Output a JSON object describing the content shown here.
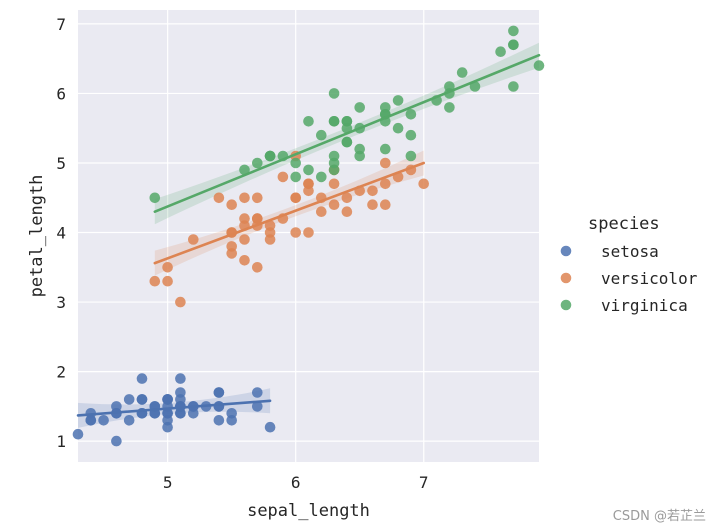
{
  "chart_data": {
    "type": "scatter",
    "title": "",
    "xlabel": "sepal_length",
    "ylabel": "petal_length",
    "xlim": [
      4.3,
      7.9
    ],
    "ylim": [
      0.7,
      7.2
    ],
    "xticks": [
      5,
      6,
      7
    ],
    "yticks": [
      1,
      2,
      3,
      4,
      5,
      6,
      7
    ],
    "grid": true,
    "legend": {
      "title": "species",
      "placement": "right",
      "entries": [
        "setosa",
        "versicolor",
        "virginica"
      ]
    },
    "series": [
      {
        "name": "setosa",
        "color": "#4c72b0",
        "points": [
          [
            5.1,
            1.4
          ],
          [
            4.9,
            1.4
          ],
          [
            4.7,
            1.3
          ],
          [
            4.6,
            1.5
          ],
          [
            5.0,
            1.4
          ],
          [
            5.4,
            1.7
          ],
          [
            4.6,
            1.4
          ],
          [
            5.0,
            1.5
          ],
          [
            4.4,
            1.4
          ],
          [
            4.9,
            1.5
          ],
          [
            5.4,
            1.5
          ],
          [
            4.8,
            1.6
          ],
          [
            4.8,
            1.4
          ],
          [
            4.3,
            1.1
          ],
          [
            5.8,
            1.2
          ],
          [
            5.7,
            1.5
          ],
          [
            5.4,
            1.3
          ],
          [
            5.1,
            1.4
          ],
          [
            5.7,
            1.7
          ],
          [
            5.1,
            1.5
          ],
          [
            5.4,
            1.7
          ],
          [
            5.1,
            1.5
          ],
          [
            4.6,
            1.0
          ],
          [
            5.1,
            1.7
          ],
          [
            4.8,
            1.9
          ],
          [
            5.0,
            1.6
          ],
          [
            5.0,
            1.6
          ],
          [
            5.2,
            1.5
          ],
          [
            5.2,
            1.4
          ],
          [
            4.7,
            1.6
          ],
          [
            4.8,
            1.6
          ],
          [
            5.4,
            1.5
          ],
          [
            5.2,
            1.5
          ],
          [
            5.5,
            1.4
          ],
          [
            4.9,
            1.5
          ],
          [
            5.0,
            1.2
          ],
          [
            5.5,
            1.3
          ],
          [
            4.9,
            1.4
          ],
          [
            4.4,
            1.3
          ],
          [
            5.1,
            1.5
          ],
          [
            5.0,
            1.3
          ],
          [
            4.5,
            1.3
          ],
          [
            4.4,
            1.3
          ],
          [
            5.0,
            1.6
          ],
          [
            5.1,
            1.9
          ],
          [
            4.8,
            1.4
          ],
          [
            5.1,
            1.6
          ],
          [
            4.6,
            1.4
          ],
          [
            5.3,
            1.5
          ],
          [
            5.0,
            1.4
          ]
        ],
        "regression": {
          "x": [
            4.3,
            5.8
          ],
          "y": [
            1.37,
            1.58
          ]
        }
      },
      {
        "name": "versicolor",
        "color": "#dd8452",
        "points": [
          [
            7.0,
            4.7
          ],
          [
            6.4,
            4.5
          ],
          [
            6.9,
            4.9
          ],
          [
            5.5,
            4.0
          ],
          [
            6.5,
            4.6
          ],
          [
            5.7,
            4.5
          ],
          [
            6.3,
            4.7
          ],
          [
            4.9,
            3.3
          ],
          [
            6.6,
            4.6
          ],
          [
            5.2,
            3.9
          ],
          [
            5.0,
            3.5
          ],
          [
            5.9,
            4.2
          ],
          [
            6.0,
            4.0
          ],
          [
            6.1,
            4.7
          ],
          [
            5.6,
            3.6
          ],
          [
            6.7,
            4.4
          ],
          [
            5.6,
            4.5
          ],
          [
            5.8,
            4.1
          ],
          [
            6.2,
            4.5
          ],
          [
            5.6,
            3.9
          ],
          [
            5.9,
            4.8
          ],
          [
            6.1,
            4.0
          ],
          [
            6.3,
            4.9
          ],
          [
            6.1,
            4.7
          ],
          [
            6.4,
            4.3
          ],
          [
            6.6,
            4.4
          ],
          [
            6.8,
            4.8
          ],
          [
            6.7,
            5.0
          ],
          [
            6.0,
            4.5
          ],
          [
            5.7,
            3.5
          ],
          [
            5.5,
            3.8
          ],
          [
            5.5,
            3.7
          ],
          [
            5.8,
            3.9
          ],
          [
            6.0,
            5.1
          ],
          [
            5.4,
            4.5
          ],
          [
            6.0,
            4.5
          ],
          [
            6.7,
            4.7
          ],
          [
            6.3,
            4.4
          ],
          [
            5.6,
            4.1
          ],
          [
            5.5,
            4.0
          ],
          [
            5.5,
            4.4
          ],
          [
            6.1,
            4.6
          ],
          [
            5.8,
            4.0
          ],
          [
            5.0,
            3.3
          ],
          [
            5.6,
            4.2
          ],
          [
            5.7,
            4.2
          ],
          [
            5.7,
            4.2
          ],
          [
            6.2,
            4.3
          ],
          [
            5.1,
            3.0
          ],
          [
            5.7,
            4.1
          ]
        ],
        "regression": {
          "x": [
            4.9,
            7.0
          ],
          "y": [
            3.56,
            5.0
          ]
        }
      },
      {
        "name": "virginica",
        "color": "#55a868",
        "points": [
          [
            6.3,
            6.0
          ],
          [
            5.8,
            5.1
          ],
          [
            7.1,
            5.9
          ],
          [
            6.3,
            5.6
          ],
          [
            6.5,
            5.8
          ],
          [
            7.6,
            6.6
          ],
          [
            4.9,
            4.5
          ],
          [
            7.3,
            6.3
          ],
          [
            6.7,
            5.8
          ],
          [
            7.2,
            6.1
          ],
          [
            6.5,
            5.1
          ],
          [
            6.4,
            5.3
          ],
          [
            6.8,
            5.5
          ],
          [
            5.7,
            5.0
          ],
          [
            5.8,
            5.1
          ],
          [
            6.4,
            5.3
          ],
          [
            6.5,
            5.5
          ],
          [
            7.7,
            6.7
          ],
          [
            7.7,
            6.9
          ],
          [
            6.0,
            5.0
          ],
          [
            6.9,
            5.7
          ],
          [
            5.6,
            4.9
          ],
          [
            7.7,
            6.7
          ],
          [
            6.3,
            4.9
          ],
          [
            6.7,
            5.7
          ],
          [
            7.2,
            6.0
          ],
          [
            6.2,
            4.8
          ],
          [
            6.1,
            4.9
          ],
          [
            6.4,
            5.6
          ],
          [
            7.2,
            5.8
          ],
          [
            7.4,
            6.1
          ],
          [
            7.9,
            6.4
          ],
          [
            6.4,
            5.6
          ],
          [
            6.3,
            5.1
          ],
          [
            6.1,
            5.6
          ],
          [
            7.7,
            6.1
          ],
          [
            6.3,
            5.6
          ],
          [
            6.4,
            5.5
          ],
          [
            6.0,
            4.8
          ],
          [
            6.9,
            5.4
          ],
          [
            6.7,
            5.6
          ],
          [
            6.9,
            5.1
          ],
          [
            5.8,
            5.1
          ],
          [
            6.8,
            5.9
          ],
          [
            6.7,
            5.7
          ],
          [
            6.7,
            5.2
          ],
          [
            6.3,
            5.0
          ],
          [
            6.5,
            5.2
          ],
          [
            6.2,
            5.4
          ],
          [
            5.9,
            5.1
          ]
        ],
        "regression": {
          "x": [
            4.9,
            7.9
          ],
          "y": [
            4.3,
            6.55
          ]
        }
      }
    ]
  },
  "watermark": "CSDN @若芷兰"
}
